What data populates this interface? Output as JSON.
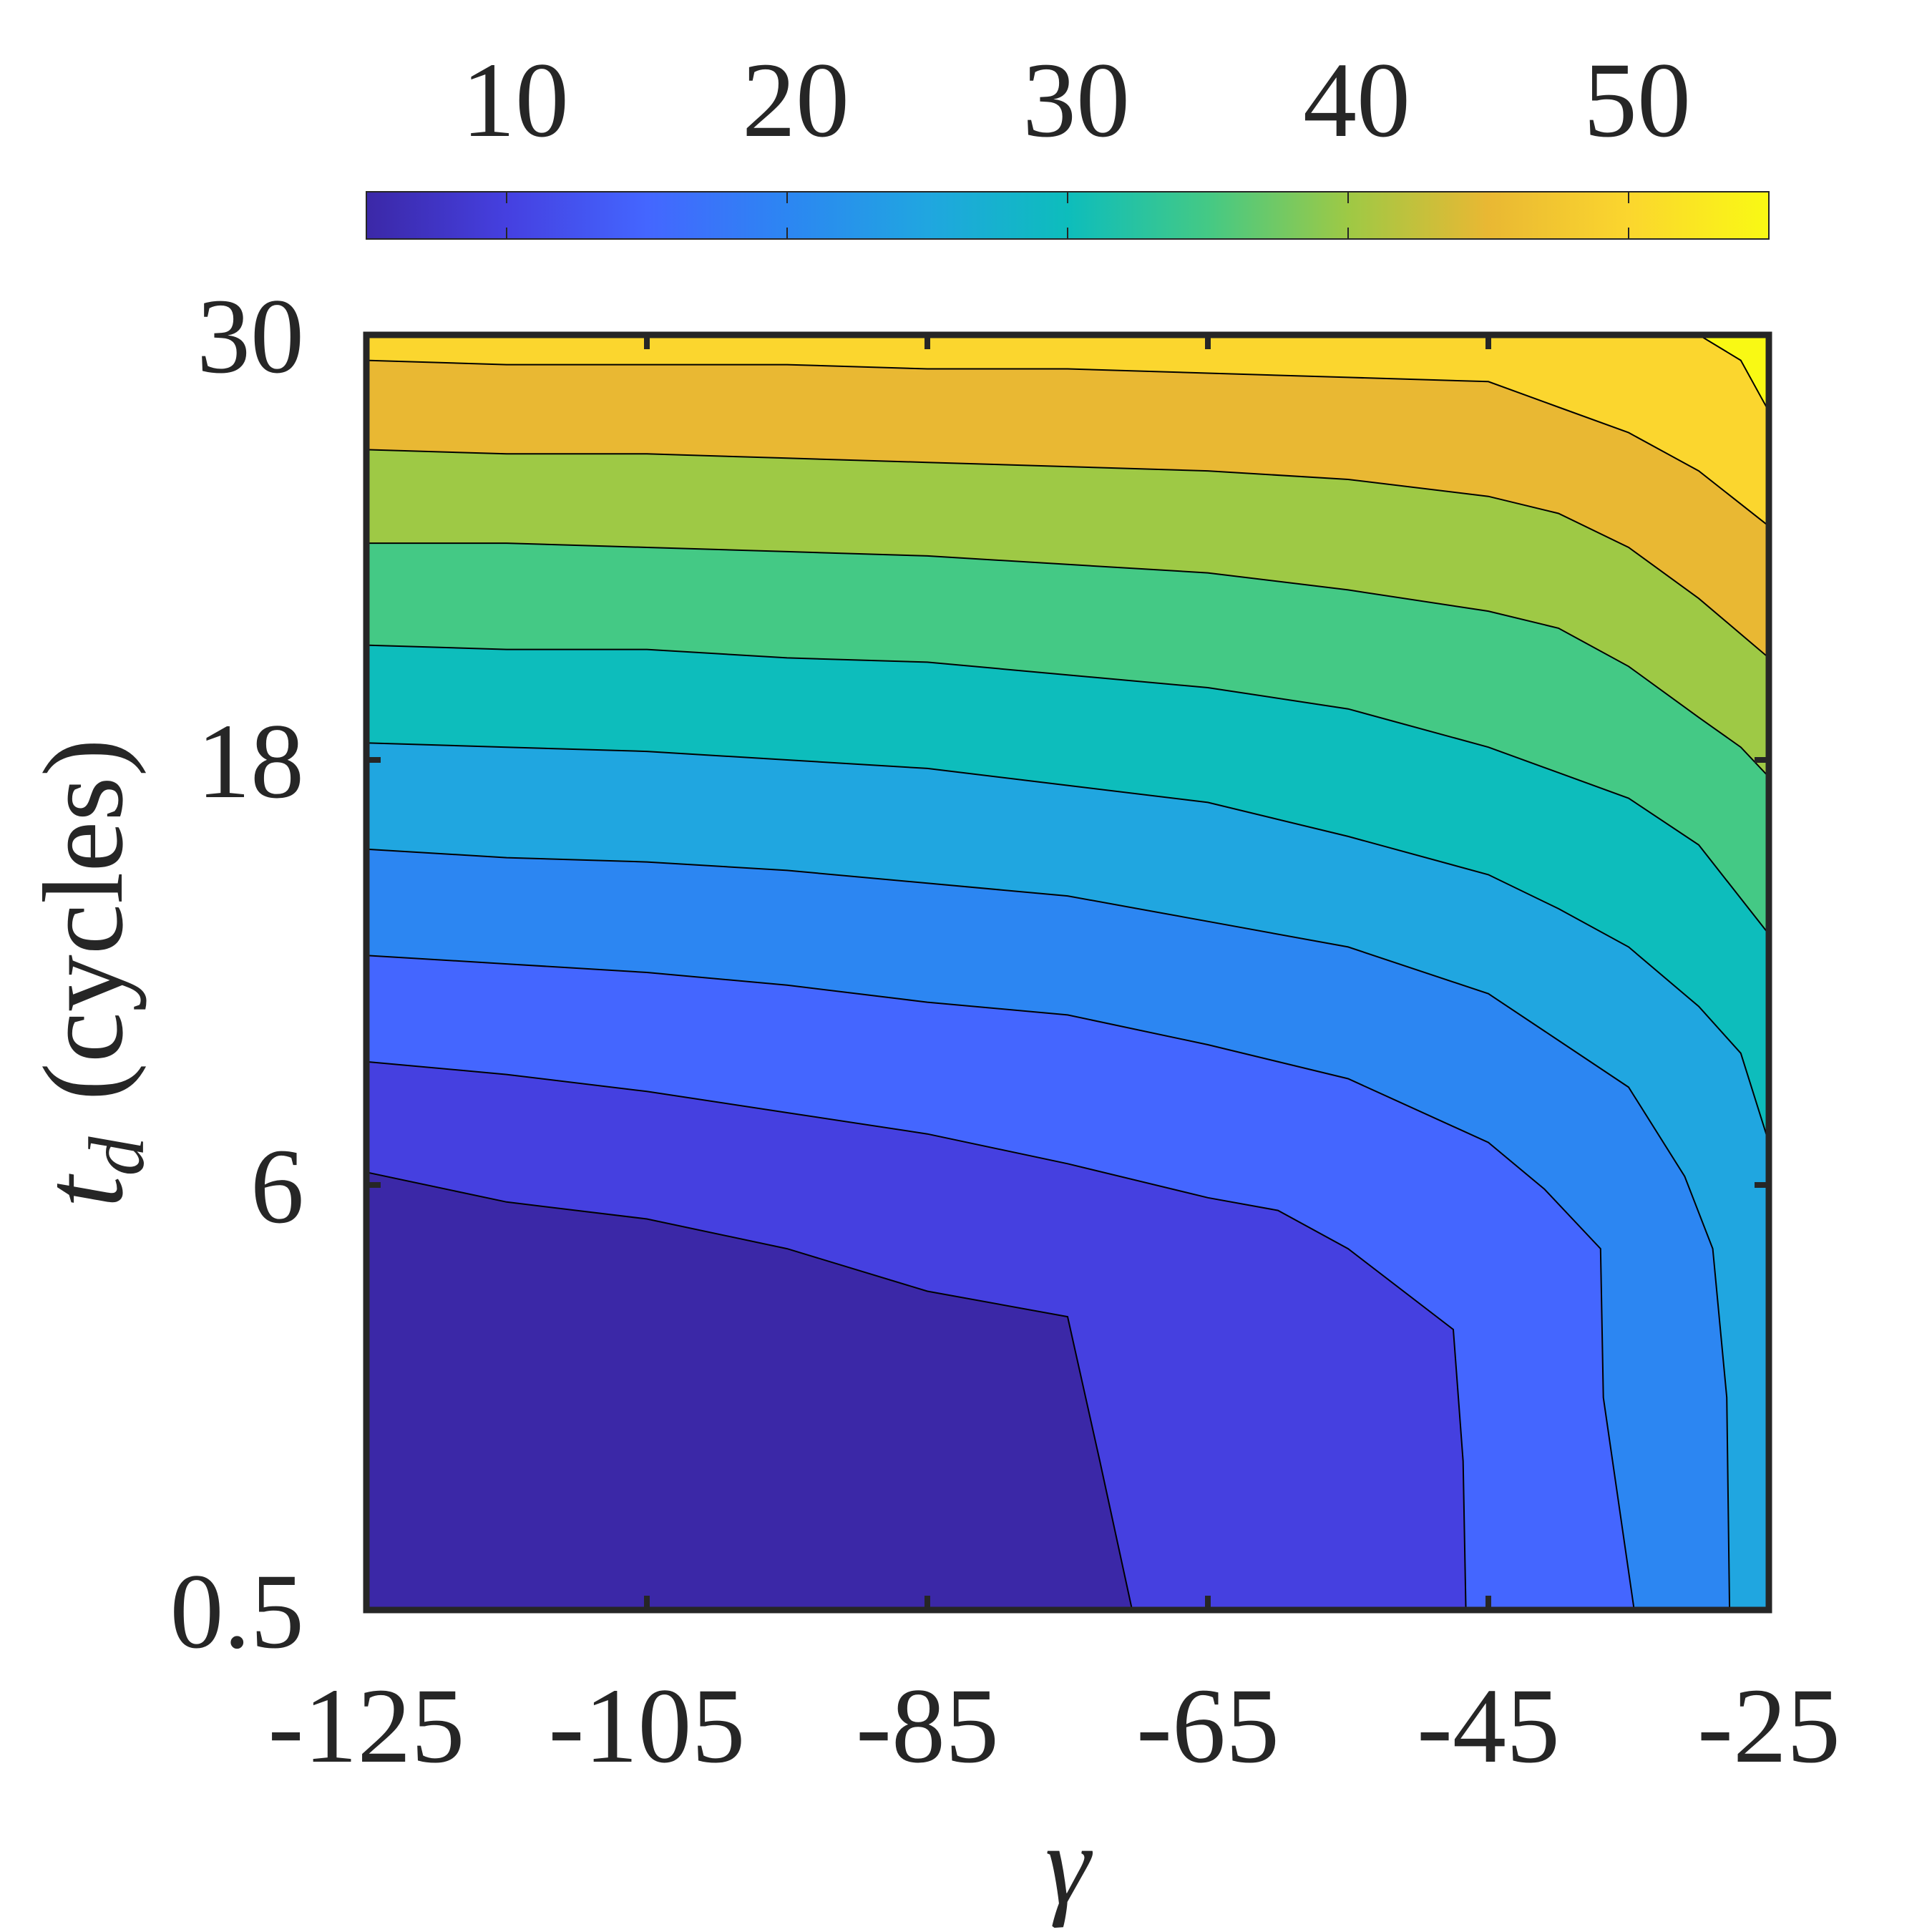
{
  "chart_data": {
    "type": "contour",
    "xlabel": "γ",
    "ylabel_main": "t",
    "ylabel_sub": "d",
    "ylabel_unit": "(cycles)",
    "x_ticks": [
      "-125",
      "-105",
      "-85",
      "-65",
      "-45",
      "-25"
    ],
    "x_tick_values": [
      -125,
      -105,
      -85,
      -65,
      -45,
      -25
    ],
    "y_ticks": [
      "0.5",
      "6",
      "18",
      "30"
    ],
    "y_tick_positions": [
      0,
      1,
      2,
      3
    ],
    "xlim": [
      -125,
      -25
    ],
    "ylim": [
      0,
      3
    ],
    "y_axis_note": "non-uniform categorical axis: 0.5, 6, 18, 30",
    "colorbar": {
      "orientation": "horizontal",
      "location": "top",
      "range": [
        5,
        55
      ],
      "ticks": [
        "10",
        "20",
        "30",
        "40",
        "50"
      ],
      "tick_values": [
        10,
        20,
        30,
        40,
        50
      ]
    },
    "levels": [
      5,
      10,
      15,
      20,
      25,
      30,
      35,
      40,
      45,
      50,
      55
    ],
    "colors": [
      "#3b28a7",
      "#4540e0",
      "#4466ff",
      "#2c86f2",
      "#20a6e0",
      "#0dbdbc",
      "#44c985",
      "#9ec945",
      "#e9b833",
      "#fbd62e",
      "#f9f914"
    ],
    "contour_lines": [
      {
        "level": 10,
        "points": [
          [
            -125,
            1.03
          ],
          [
            -115,
            0.96
          ],
          [
            -105,
            0.92
          ],
          [
            -95,
            0.85
          ],
          [
            -85,
            0.75
          ],
          [
            -75,
            0.69
          ],
          [
            -72.7,
            0.35
          ],
          [
            -70.4,
            0.0
          ]
        ]
      },
      {
        "level": 15,
        "points": [
          [
            -125,
            1.29
          ],
          [
            -115,
            1.26
          ],
          [
            -105,
            1.22
          ],
          [
            -95,
            1.17
          ],
          [
            -85,
            1.12
          ],
          [
            -75,
            1.05
          ],
          [
            -65,
            0.97
          ],
          [
            -60,
            0.94
          ],
          [
            -55,
            0.85
          ],
          [
            -47.5,
            0.66
          ],
          [
            -46.8,
            0.35
          ],
          [
            -46.6,
            0.0
          ]
        ]
      },
      {
        "level": 20,
        "points": [
          [
            -125,
            1.54
          ],
          [
            -115,
            1.52
          ],
          [
            -105,
            1.5
          ],
          [
            -95,
            1.47
          ],
          [
            -85,
            1.43
          ],
          [
            -75,
            1.4
          ],
          [
            -65,
            1.33
          ],
          [
            -55,
            1.25
          ],
          [
            -45,
            1.1
          ],
          [
            -41,
            0.99
          ],
          [
            -37,
            0.85
          ],
          [
            -36.8,
            0.5
          ],
          [
            -34.6,
            0.0
          ]
        ]
      },
      {
        "level": 25,
        "points": [
          [
            -125,
            1.79
          ],
          [
            -115,
            1.77
          ],
          [
            -105,
            1.76
          ],
          [
            -95,
            1.74
          ],
          [
            -85,
            1.71
          ],
          [
            -75,
            1.68
          ],
          [
            -65,
            1.62
          ],
          [
            -55,
            1.56
          ],
          [
            -45,
            1.45
          ],
          [
            -40,
            1.34
          ],
          [
            -35,
            1.23
          ],
          [
            -31,
            1.02
          ],
          [
            -29,
            0.85
          ],
          [
            -28,
            0.5
          ],
          [
            -27.8,
            0.0
          ]
        ]
      },
      {
        "level": 30,
        "points": [
          [
            -125,
            2.04
          ],
          [
            -115,
            2.03
          ],
          [
            -105,
            2.02
          ],
          [
            -95,
            2.0
          ],
          [
            -85,
            1.98
          ],
          [
            -75,
            1.94
          ],
          [
            -65,
            1.9
          ],
          [
            -55,
            1.82
          ],
          [
            -45,
            1.73
          ],
          [
            -40,
            1.65
          ],
          [
            -35,
            1.56
          ],
          [
            -30,
            1.42
          ],
          [
            -27,
            1.31
          ],
          [
            -25,
            1.1
          ]
        ]
      },
      {
        "level": 35,
        "points": [
          [
            -125,
            2.27
          ],
          [
            -115,
            2.26
          ],
          [
            -105,
            2.26
          ],
          [
            -95,
            2.24
          ],
          [
            -85,
            2.23
          ],
          [
            -75,
            2.2
          ],
          [
            -65,
            2.17
          ],
          [
            -55,
            2.12
          ],
          [
            -45,
            2.03
          ],
          [
            -40,
            1.97
          ],
          [
            -35,
            1.91
          ],
          [
            -30,
            1.8
          ],
          [
            -25,
            1.59
          ]
        ]
      },
      {
        "level": 40,
        "points": [
          [
            -125,
            2.51
          ],
          [
            -115,
            2.51
          ],
          [
            -105,
            2.5
          ],
          [
            -95,
            2.49
          ],
          [
            -85,
            2.48
          ],
          [
            -75,
            2.46
          ],
          [
            -65,
            2.44
          ],
          [
            -55,
            2.4
          ],
          [
            -45,
            2.35
          ],
          [
            -40,
            2.31
          ],
          [
            -35,
            2.22
          ],
          [
            -30,
            2.1
          ],
          [
            -27,
            2.03
          ],
          [
            -25,
            1.96
          ]
        ]
      },
      {
        "level": 45,
        "points": [
          [
            -125,
            2.73
          ],
          [
            -115,
            2.72
          ],
          [
            -105,
            2.72
          ],
          [
            -95,
            2.71
          ],
          [
            -85,
            2.7
          ],
          [
            -75,
            2.69
          ],
          [
            -65,
            2.68
          ],
          [
            -55,
            2.66
          ],
          [
            -45,
            2.62
          ],
          [
            -40,
            2.58
          ],
          [
            -35,
            2.5
          ],
          [
            -30,
            2.38
          ],
          [
            -25,
            2.24
          ]
        ]
      },
      {
        "level": 50,
        "points": [
          [
            -125,
            2.94
          ],
          [
            -115,
            2.93
          ],
          [
            -105,
            2.93
          ],
          [
            -95,
            2.93
          ],
          [
            -85,
            2.92
          ],
          [
            -75,
            2.92
          ],
          [
            -65,
            2.91
          ],
          [
            -55,
            2.9
          ],
          [
            -45,
            2.89
          ],
          [
            -40,
            2.83
          ],
          [
            -35,
            2.77
          ],
          [
            -30,
            2.68
          ],
          [
            -25,
            2.55
          ]
        ]
      },
      {
        "level": 55,
        "points": [
          [
            -30,
            3.0
          ],
          [
            -27,
            2.94
          ],
          [
            -25,
            2.82
          ]
        ]
      }
    ]
  }
}
